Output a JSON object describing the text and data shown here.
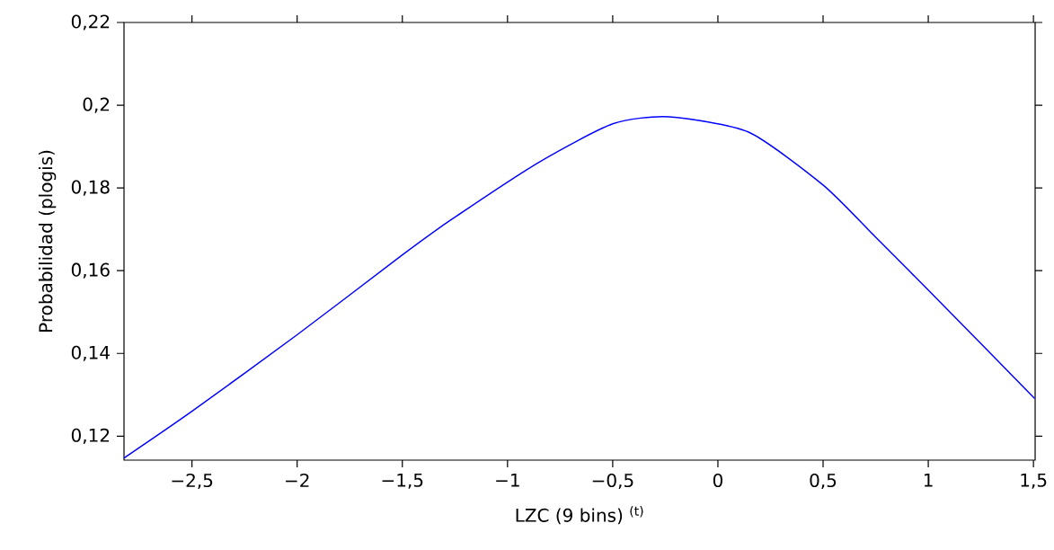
{
  "chart_data": {
    "type": "line",
    "xlabel": "LZC (9 bins) $^{(t)}$",
    "ylabel": "Probabilidad (plogis)",
    "x": [
      -2.823,
      -2.5,
      -2.0,
      -1.5,
      -1.277,
      -0.851,
      -0.5,
      -0.232,
      0.146,
      0.5,
      0.744,
      1.0,
      1.506
    ],
    "series": [
      {
        "color": "#0000ff",
        "values": [
          0.1147,
          0.126,
          0.1445,
          0.1638,
          0.172,
          0.1862,
          0.1955,
          0.1972,
          0.1935,
          0.1807,
          0.1684,
          0.1553,
          0.1291
        ]
      }
    ],
    "xlim": [
      -2.823,
      1.508
    ],
    "ylim": [
      0.1142,
      0.22
    ],
    "xticks": [
      {
        "value": -2.5,
        "label": "−2,5"
      },
      {
        "value": -2,
        "label": "−2"
      },
      {
        "value": -1.5,
        "label": "−1,5"
      },
      {
        "value": -1,
        "label": "−1"
      },
      {
        "value": -0.5,
        "label": "−0,5"
      },
      0,
      {
        "value": 0.5,
        "label": "0,5"
      },
      1,
      {
        "value": 1.5,
        "label": "1,5"
      }
    ],
    "yticks": [
      {
        "value": 0.12,
        "label": "0,12"
      },
      {
        "value": 0.14,
        "label": "0,14"
      },
      {
        "value": 0.16,
        "label": "0,16"
      },
      {
        "value": 0.18,
        "label": "0,18"
      },
      {
        "value": 0.2,
        "label": "0,2"
      },
      {
        "value": 0.22,
        "label": "0,22"
      }
    ],
    "marker": "none",
    "line_style": "solid"
  }
}
